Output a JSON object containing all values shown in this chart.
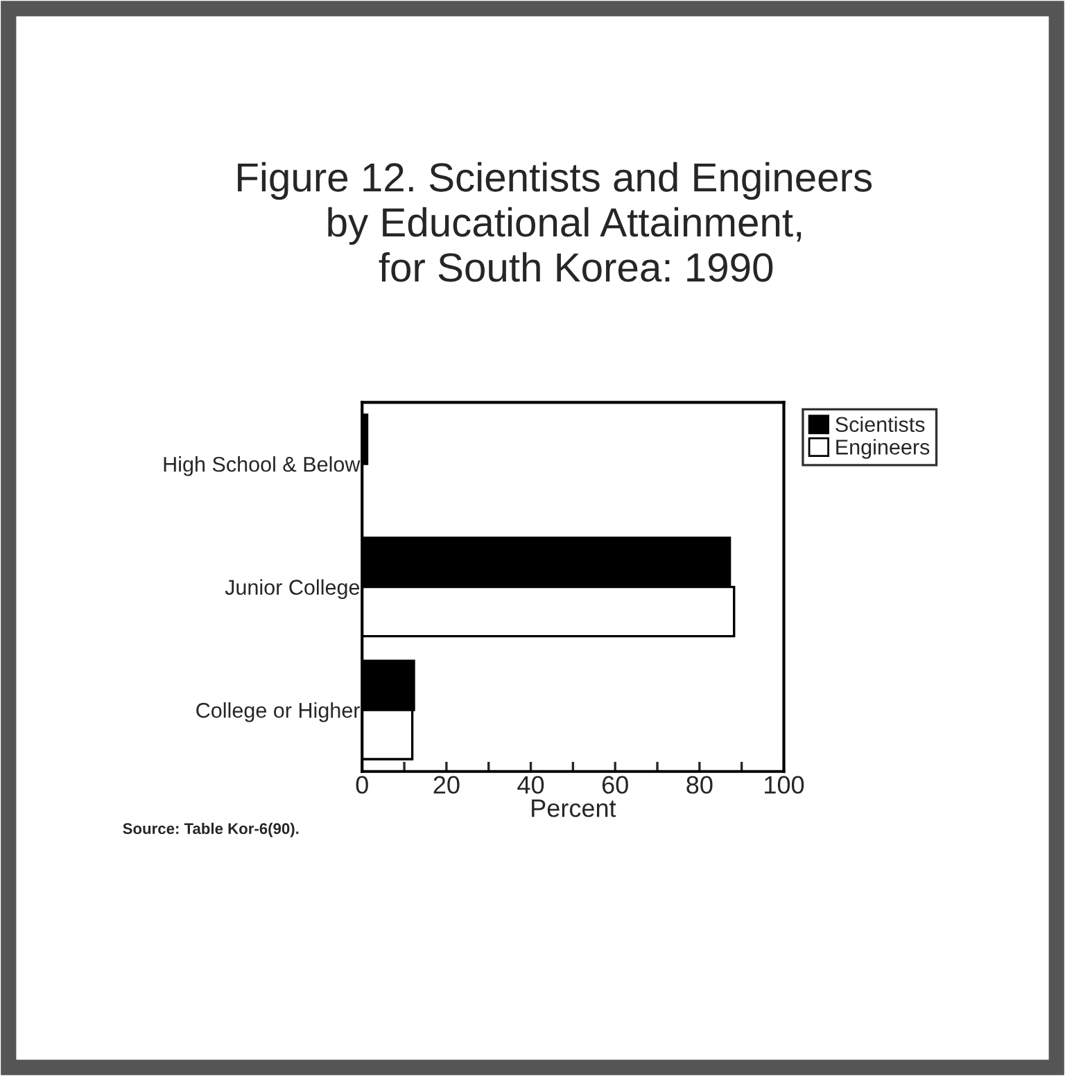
{
  "chart_data": {
    "type": "bar",
    "orientation": "horizontal",
    "title": "Figure 12. Scientists and Engineers\n  by Educational Attainment,\n    for South Korea: 1990",
    "xlabel": "Percent",
    "categories": [
      "High School & Below",
      "Junior College",
      "College or Higher"
    ],
    "series": [
      {
        "name": "Scientists",
        "color": "#000000",
        "values": [
          1.2,
          87.2,
          12.3
        ]
      },
      {
        "name": "Engineers",
        "color": "#ffffff",
        "values": [
          null,
          88.2,
          11.9
        ]
      }
    ],
    "xlim": [
      0,
      100
    ],
    "xticks": [
      0,
      {
        "value": 10,
        "label": null
      },
      20,
      {
        "value": 30,
        "label": null
      },
      40,
      {
        "value": 50,
        "label": null
      },
      60,
      {
        "value": 70,
        "label": null
      },
      80,
      {
        "value": 90,
        "label": null
      },
      100
    ],
    "legend": "top right",
    "grid": false,
    "annotations": [
      "Source: Table Kor-6(90)."
    ]
  }
}
